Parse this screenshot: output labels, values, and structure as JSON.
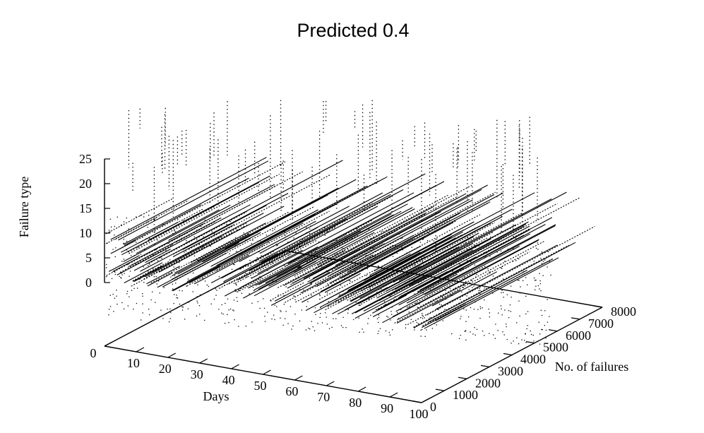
{
  "chart_data": {
    "type": "scatter",
    "dimensions": 3,
    "title": "Predicted 0.4",
    "xlabel": "Days",
    "ylabel": "No. of failures",
    "zlabel": "Failure type",
    "xlim": [
      0,
      100
    ],
    "ylim": [
      0,
      8000
    ],
    "zlim": [
      0,
      25
    ],
    "x_ticks": [
      "0",
      "10",
      "20",
      "30",
      "40",
      "50",
      "60",
      "70",
      "80",
      "90",
      "100"
    ],
    "y_ticks": [
      "0",
      "1000",
      "2000",
      "3000",
      "4000",
      "5000",
      "6000",
      "7000",
      "8000"
    ],
    "z_ticks": [
      "0",
      "5",
      "10",
      "15",
      "20",
      "25"
    ],
    "grid": false,
    "legend": "none",
    "marker_color": "#000000",
    "note": ""
  }
}
